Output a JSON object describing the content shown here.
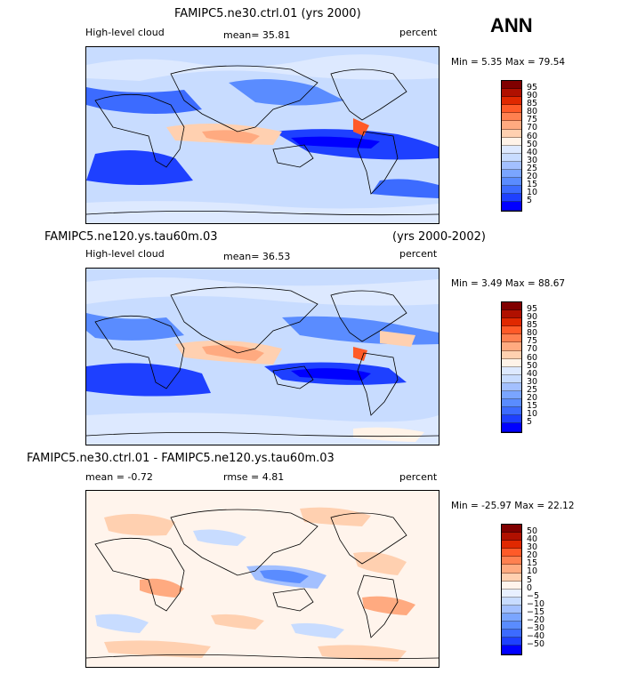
{
  "season": "ANN",
  "colors": {
    "abs": [
      "#000080",
      "#0000ff",
      "#1e40ff",
      "#3c6bff",
      "#5a8cff",
      "#7aa5ff",
      "#a3c0ff",
      "#c8dcff",
      "#dde9ff",
      "#fff3e8",
      "#ffd0b0",
      "#ffaa80",
      "#ff8050",
      "#ff5a28",
      "#e02800",
      "#b01000",
      "#800000"
    ],
    "diff": [
      "#000080",
      "#0000ff",
      "#1e40ff",
      "#3c6bff",
      "#5a8cff",
      "#7aa5ff",
      "#a3c0ff",
      "#c8dcff",
      "#e8f0ff",
      "#fff4ec",
      "#ffd0b0",
      "#ffaa80",
      "#ff8050",
      "#ff5a28",
      "#e02800",
      "#b01000",
      "#800000"
    ]
  },
  "panel1": {
    "title": "FAMIPC5.ne30.ctrl.01 (yrs 2000)",
    "variable": "High-level cloud",
    "mean": "mean=   35.81",
    "units": "percent",
    "minmax": "Min =   5.35  Max =  79.54",
    "levels": [
      "95",
      "90",
      "85",
      "80",
      "75",
      "70",
      "60",
      "50",
      "40",
      "30",
      "25",
      "20",
      "15",
      "10",
      "5"
    ]
  },
  "panel2": {
    "title_left": "FAMIPC5.ne120.ys.tau60m.03",
    "title_right": "(yrs 2000-2002)",
    "variable": "High-level cloud",
    "mean": "mean=   36.53",
    "units": "percent",
    "minmax": "Min =   3.49  Max =  88.67",
    "levels": [
      "95",
      "90",
      "85",
      "80",
      "75",
      "70",
      "60",
      "50",
      "40",
      "30",
      "25",
      "20",
      "15",
      "10",
      "5"
    ]
  },
  "panel3": {
    "title": "FAMIPC5.ne30.ctrl.01 - FAMIPC5.ne120.ys.tau60m.03",
    "mean": "mean =   -0.72",
    "rmse": "rmse =    4.81",
    "units": "percent",
    "minmax": "Min = -25.97  Max =  22.12",
    "levels": [
      "50",
      "40",
      "30",
      "20",
      "15",
      "10",
      "5",
      "0",
      "−5",
      "−10",
      "−15",
      "−20",
      "−30",
      "−40",
      "−50"
    ]
  }
}
